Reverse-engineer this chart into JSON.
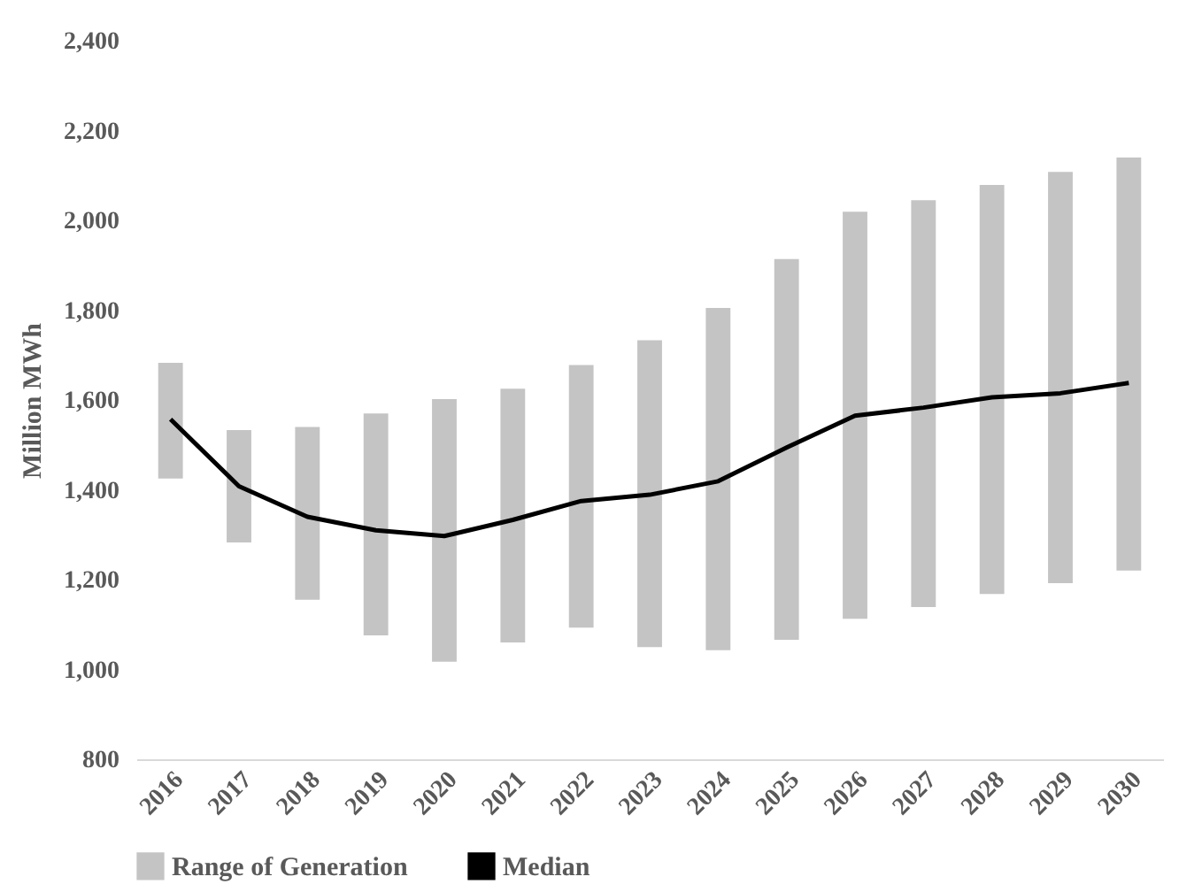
{
  "chart_data": {
    "type": "bar",
    "ylabel": "Million MWh",
    "categories": [
      "2016",
      "2017",
      "2018",
      "2019",
      "2020",
      "2021",
      "2022",
      "2023",
      "2024",
      "2025",
      "2026",
      "2027",
      "2028",
      "2029",
      "2030"
    ],
    "series": [
      {
        "name": "Range of Generation",
        "color": "#c4c4c4",
        "base": [
          1425,
          1283,
          1155,
          1076,
          1017,
          1060,
          1093,
          1050,
          1043,
          1066,
          1113,
          1139,
          1168,
          1192,
          1220
        ],
        "values": [
          258,
          250,
          385,
          494,
          585,
          565,
          585,
          683,
          762,
          848,
          906,
          906,
          911,
          916,
          920
        ]
      },
      {
        "name": "Median",
        "type": "line",
        "color": "#000000",
        "values": [
          1557,
          1408,
          1340,
          1310,
          1297,
          1333,
          1375,
          1389,
          1419,
          1494,
          1565,
          1583,
          1606,
          1615,
          1638
        ]
      }
    ],
    "ylim": [
      800,
      2400
    ],
    "yticks": [
      800,
      {
        "value": 1000,
        "label": "1,000"
      },
      {
        "value": 1200,
        "label": "1,200"
      },
      {
        "value": 1400,
        "label": "1,400"
      },
      {
        "value": 1600,
        "label": "1,600"
      },
      {
        "value": 1800,
        "label": "1,800"
      },
      {
        "value": 2000,
        "label": "2,000"
      },
      {
        "value": 2200,
        "label": "2,200"
      },
      {
        "value": 2400,
        "label": "2,400"
      }
    ],
    "grid": false,
    "legend": "bottom"
  }
}
